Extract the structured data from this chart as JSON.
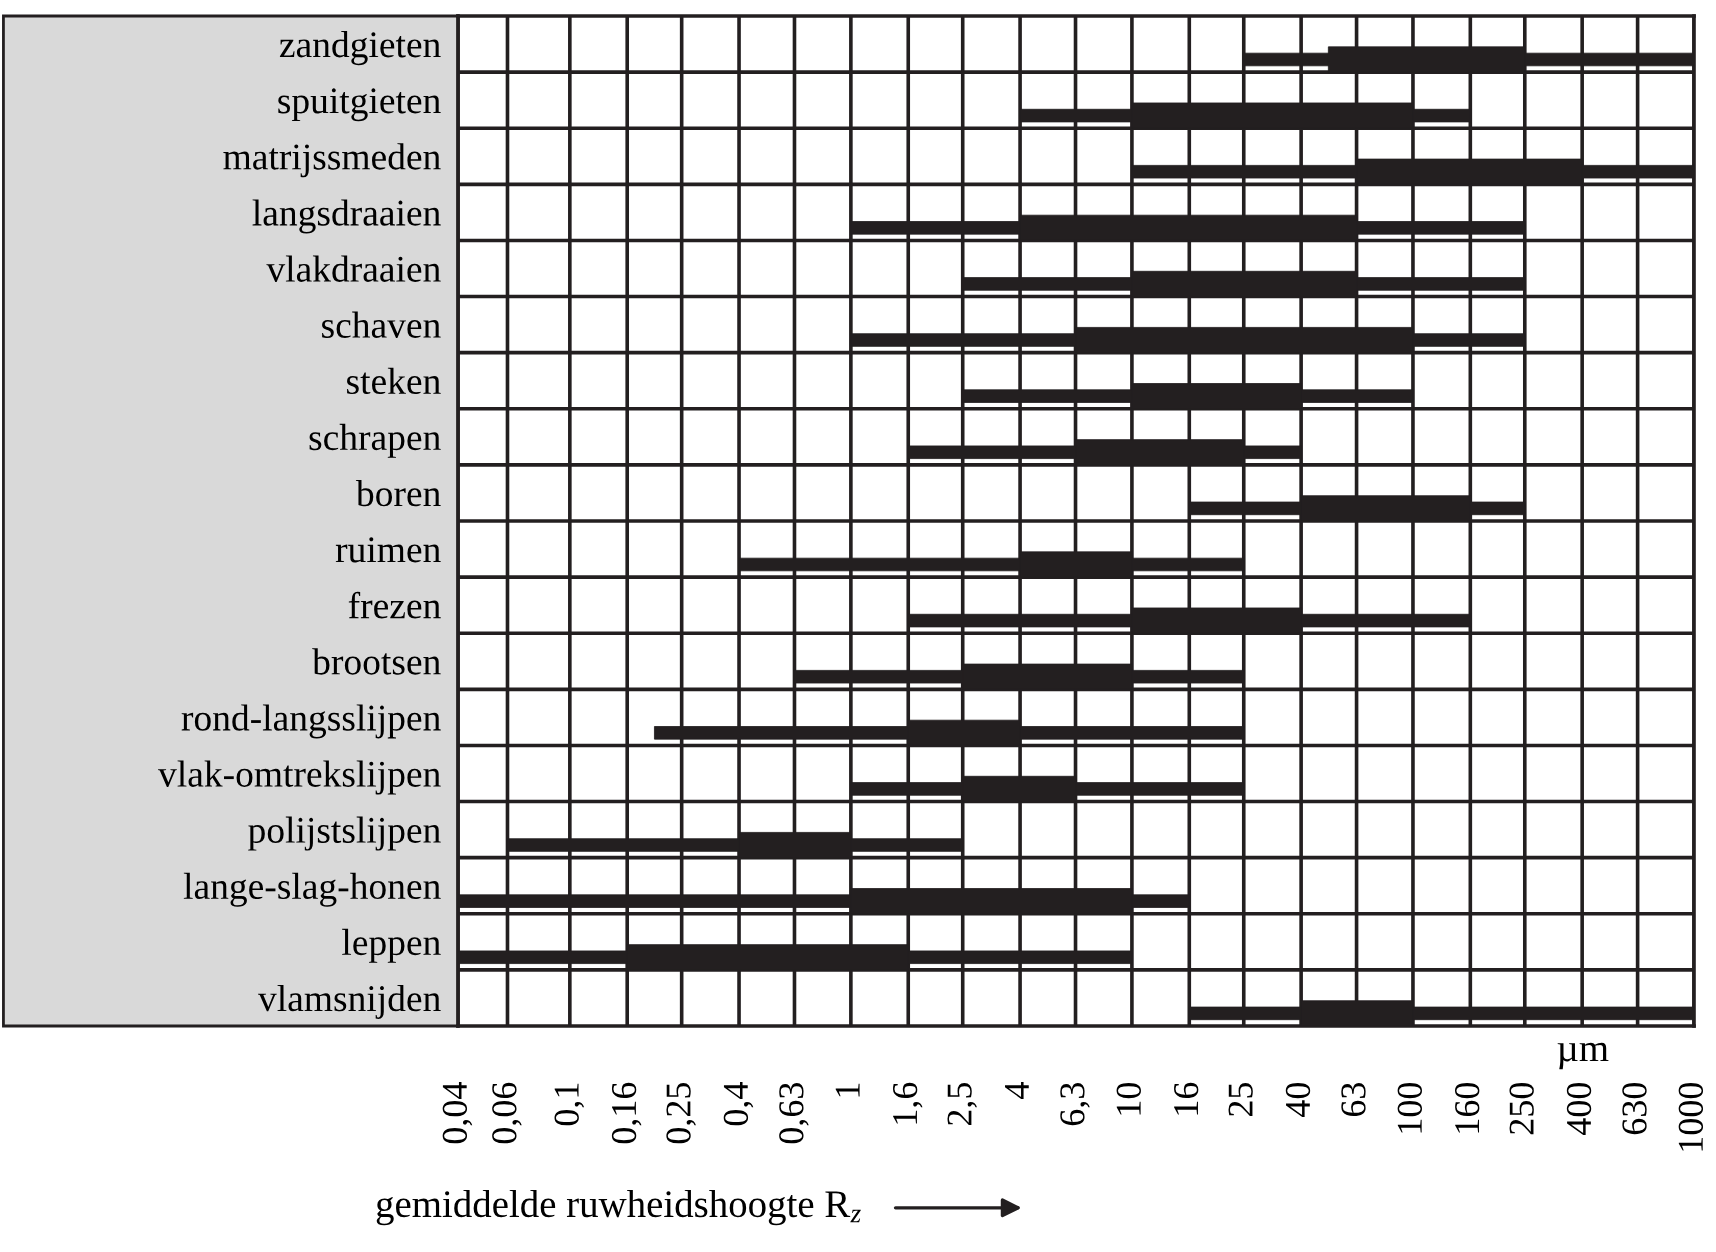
{
  "chart_data": {
    "type": "bar",
    "orientation": "horizontal",
    "categories": [
      "zandgieten",
      "spuitgieten",
      "matrijssmeden",
      "langsdraaien",
      "vlakdraaien",
      "schaven",
      "steken",
      "schrapen",
      "boren",
      "ruimen",
      "frezen",
      "brootsen",
      "rond-langsslijpen",
      "vlak-omtrekslijpen",
      "polijstslijpen",
      "lange-slag-honen",
      "leppen",
      "vlamsnijden"
    ],
    "series": [
      {
        "color": "#231f20",
        "base": [
          25,
          4,
          10,
          1,
          2.5,
          1,
          2.5,
          1.6,
          16,
          0.4,
          1.6,
          0.63,
          0.2,
          1,
          0.06,
          0.04,
          0.04,
          16
        ],
        "values": [
          975,
          156,
          990,
          249,
          247.5,
          249,
          97.5,
          38.4,
          234,
          24.6,
          158.4,
          24.37,
          24.8,
          24,
          2.44,
          15.96,
          9.96,
          984
        ]
      },
      {
        "color": "#231f20",
        "base": [
          50,
          10,
          63,
          4,
          10,
          6.3,
          10,
          6.3,
          40,
          4,
          10,
          2.5,
          1.6,
          2.5,
          0.4,
          1,
          0.16,
          40
        ],
        "values": [
          200,
          90,
          337,
          59,
          53,
          93.7,
          30,
          18.7,
          120,
          6,
          30,
          7.5,
          2.4,
          3.8,
          0.6,
          9,
          1.44,
          60
        ]
      }
    ],
    "xlabel": "gemiddelde ruwheidshoogte R$_{z}$",
    "annotations": [
      "µm"
    ],
    "log": "x",
    "xlim": [
      0.04,
      1000
    ],
    "xticks": [
      {
        "value": 0.04,
        "label": "0,04"
      },
      {
        "value": 0.06,
        "label": "0,06"
      },
      {
        "value": 0.1,
        "label": "0,1"
      },
      {
        "value": 0.16,
        "label": "0,16"
      },
      {
        "value": 0.25,
        "label": "0,25"
      },
      {
        "value": 0.4,
        "label": "0,4"
      },
      {
        "value": 0.63,
        "label": "0,63"
      },
      1,
      {
        "value": 1.6,
        "label": "1,6"
      },
      {
        "value": 2.5,
        "label": "2,5"
      },
      4,
      {
        "value": 6.3,
        "label": "6,3"
      },
      10,
      16,
      25,
      40,
      63,
      100,
      160,
      250,
      400,
      630,
      1000
    ],
    "grid": true
  }
}
